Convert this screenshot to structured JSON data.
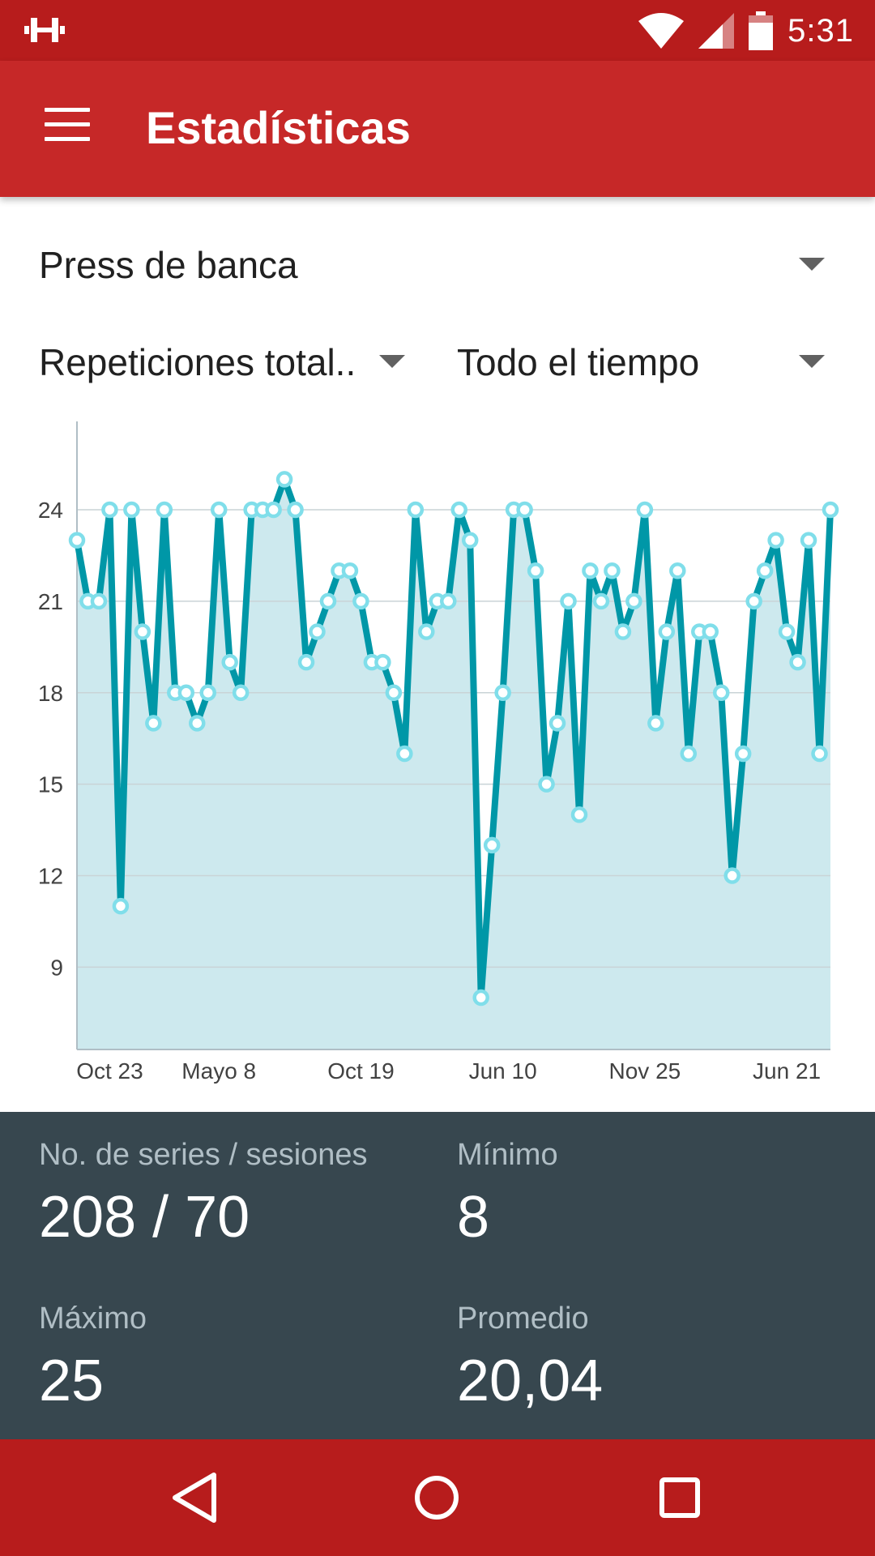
{
  "status_bar": {
    "time": "5:31",
    "icons": [
      "dumbbell-icon",
      "wifi-icon",
      "cell-signal-icon",
      "battery-icon"
    ]
  },
  "app_bar": {
    "title": "Estadísticas",
    "menu_icon": "hamburger-menu-icon"
  },
  "filters": {
    "exercise": "Press de banca",
    "metric": "Repeticiones total..",
    "period": "Todo el tiempo"
  },
  "chart_data": {
    "type": "area",
    "title": "",
    "xlabel": "",
    "ylabel": "",
    "ylim": [
      6.3,
      26.5
    ],
    "yticks": [
      9,
      12,
      15,
      18,
      21,
      24
    ],
    "x_tick_labels": [
      "Oct 23",
      "Mayo 8",
      "Oct 19",
      "Jun 10",
      "Nov 25",
      "Jun 21"
    ],
    "x_tick_indices": [
      3,
      13,
      26,
      39,
      52,
      65
    ],
    "grid": true,
    "series": [
      {
        "values": [
          23,
          21,
          21,
          24,
          11,
          24,
          20,
          17,
          24,
          18,
          18,
          17,
          18,
          24,
          19,
          18,
          24,
          24,
          24,
          25,
          24,
          19,
          20,
          21,
          22,
          22,
          21,
          19,
          19,
          18,
          16,
          24,
          20,
          21,
          21,
          24,
          23,
          8,
          13,
          18,
          24,
          24,
          22,
          15,
          17,
          21,
          14,
          22,
          21,
          22,
          20,
          21,
          24,
          17,
          20,
          22,
          16,
          20,
          20,
          18,
          12,
          16,
          21,
          22,
          23,
          20,
          19,
          23,
          16,
          24
        ]
      }
    ],
    "colors": {
      "line": "#0097a7",
      "fill": "#cde9ee",
      "marker": "#80deea",
      "grid": "#c9d3d6",
      "axis": "#b0bec5"
    }
  },
  "stats": {
    "series_sessions": {
      "label": "No. de series / sesiones",
      "value": "208 / 70"
    },
    "minimum": {
      "label": "Mínimo",
      "value": "8"
    },
    "maximum": {
      "label": "Máximo",
      "value": "25"
    },
    "average": {
      "label": "Promedio",
      "value": "20,04"
    }
  },
  "nav_bar": {
    "icons": [
      "back-icon",
      "home-icon",
      "recents-icon"
    ]
  },
  "colors": {
    "status_bar": "#b71c1c",
    "app_bar": "#c62828",
    "stats_panel": "#37474f",
    "nav_bar": "#b71c1c"
  }
}
